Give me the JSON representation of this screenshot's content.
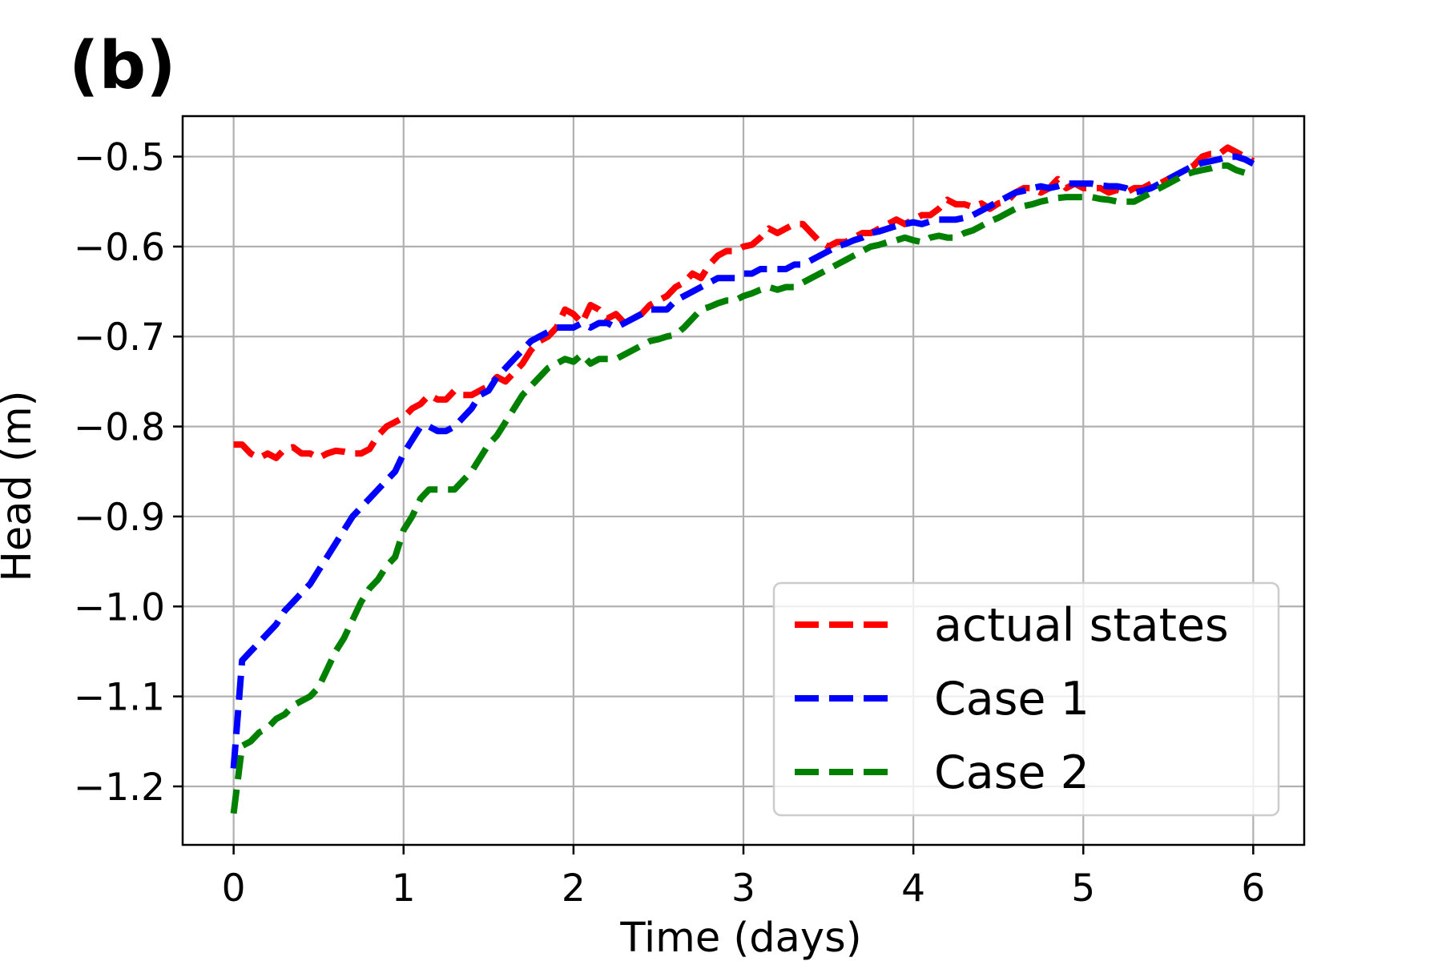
{
  "panel_label": "(b)",
  "chart_data": {
    "type": "line",
    "xlabel": "Time (days)",
    "ylabel": "Head (m)",
    "xlim": [
      -0.3,
      6.3
    ],
    "ylim": [
      -1.265,
      -0.455
    ],
    "xticks": [
      0,
      1,
      2,
      3,
      4,
      5,
      6
    ],
    "xtick_labels": [
      "0",
      "1",
      "2",
      "3",
      "4",
      "5",
      "6"
    ],
    "yticks": [
      -0.5,
      -0.6,
      -0.7,
      -0.8,
      -0.9,
      -1.0,
      -1.1,
      -1.2
    ],
    "ytick_labels": [
      "−0.5",
      "−0.6",
      "−0.7",
      "−0.8",
      "−0.9",
      "−1.0",
      "−1.1",
      "−1.2"
    ],
    "grid": true,
    "legend_position": "lower-right",
    "series": [
      {
        "name": "actual states",
        "color": "#ff0000",
        "x": [
          0,
          0.05,
          0.1,
          0.15,
          0.2,
          0.25,
          0.3,
          0.35,
          0.4,
          0.45,
          0.5,
          0.55,
          0.6,
          0.65,
          0.7,
          0.75,
          0.8,
          0.85,
          0.9,
          0.95,
          1.0,
          1.05,
          1.1,
          1.15,
          1.2,
          1.25,
          1.3,
          1.35,
          1.4,
          1.45,
          1.5,
          1.55,
          1.6,
          1.65,
          1.7,
          1.75,
          1.8,
          1.85,
          1.9,
          1.95,
          2.0,
          2.05,
          2.1,
          2.15,
          2.2,
          2.25,
          2.3,
          2.35,
          2.4,
          2.45,
          2.5,
          2.55,
          2.6,
          2.65,
          2.7,
          2.75,
          2.8,
          2.85,
          2.9,
          2.95,
          3.0,
          3.05,
          3.1,
          3.15,
          3.2,
          3.25,
          3.3,
          3.35,
          3.4,
          3.45,
          3.5,
          3.55,
          3.6,
          3.65,
          3.7,
          3.75,
          3.8,
          3.85,
          3.9,
          3.95,
          4.0,
          4.05,
          4.1,
          4.15,
          4.2,
          4.25,
          4.3,
          4.35,
          4.4,
          4.45,
          4.5,
          4.55,
          4.6,
          4.65,
          4.7,
          4.75,
          4.8,
          4.85,
          4.9,
          4.95,
          5.0,
          5.05,
          5.1,
          5.15,
          5.2,
          5.25,
          5.3,
          5.35,
          5.4,
          5.45,
          5.5,
          5.55,
          5.6,
          5.65,
          5.7,
          5.75,
          5.8,
          5.85,
          5.9,
          5.95,
          6.0
        ],
        "y": [
          -0.82,
          -0.82,
          -0.83,
          -0.835,
          -0.83,
          -0.835,
          -0.825,
          -0.823,
          -0.83,
          -0.83,
          -0.835,
          -0.83,
          -0.827,
          -0.828,
          -0.83,
          -0.83,
          -0.825,
          -0.81,
          -0.8,
          -0.795,
          -0.79,
          -0.78,
          -0.775,
          -0.765,
          -0.77,
          -0.77,
          -0.76,
          -0.765,
          -0.765,
          -0.76,
          -0.755,
          -0.745,
          -0.75,
          -0.74,
          -0.73,
          -0.715,
          -0.705,
          -0.7,
          -0.69,
          -0.67,
          -0.675,
          -0.685,
          -0.665,
          -0.67,
          -0.68,
          -0.675,
          -0.685,
          -0.68,
          -0.675,
          -0.665,
          -0.66,
          -0.655,
          -0.645,
          -0.64,
          -0.63,
          -0.635,
          -0.62,
          -0.61,
          -0.605,
          -0.605,
          -0.6,
          -0.598,
          -0.59,
          -0.58,
          -0.585,
          -0.58,
          -0.575,
          -0.575,
          -0.585,
          -0.595,
          -0.6,
          -0.595,
          -0.595,
          -0.59,
          -0.585,
          -0.585,
          -0.58,
          -0.575,
          -0.57,
          -0.575,
          -0.57,
          -0.565,
          -0.565,
          -0.558,
          -0.548,
          -0.553,
          -0.553,
          -0.556,
          -0.552,
          -0.558,
          -0.552,
          -0.55,
          -0.54,
          -0.535,
          -0.535,
          -0.54,
          -0.535,
          -0.525,
          -0.535,
          -0.53,
          -0.535,
          -0.535,
          -0.535,
          -0.54,
          -0.537,
          -0.54,
          -0.535,
          -0.535,
          -0.53,
          -0.53,
          -0.525,
          -0.52,
          -0.515,
          -0.51,
          -0.5,
          -0.497,
          -0.497,
          -0.49,
          -0.495,
          -0.5,
          -0.505
        ]
      },
      {
        "name": "Case 1",
        "color": "#0000ff",
        "x": [
          0,
          0.05,
          0.1,
          0.15,
          0.2,
          0.25,
          0.3,
          0.35,
          0.4,
          0.45,
          0.5,
          0.55,
          0.6,
          0.65,
          0.7,
          0.75,
          0.8,
          0.85,
          0.9,
          0.95,
          1.0,
          1.05,
          1.1,
          1.15,
          1.2,
          1.25,
          1.3,
          1.35,
          1.4,
          1.45,
          1.5,
          1.55,
          1.6,
          1.65,
          1.7,
          1.75,
          1.8,
          1.85,
          1.9,
          1.95,
          2.0,
          2.05,
          2.1,
          2.15,
          2.2,
          2.25,
          2.3,
          2.35,
          2.4,
          2.45,
          2.5,
          2.55,
          2.6,
          2.65,
          2.7,
          2.75,
          2.8,
          2.85,
          2.9,
          2.95,
          3.0,
          3.05,
          3.1,
          3.15,
          3.2,
          3.25,
          3.3,
          3.35,
          3.4,
          3.45,
          3.5,
          3.55,
          3.6,
          3.65,
          3.7,
          3.75,
          3.8,
          3.85,
          3.9,
          3.95,
          4.0,
          4.05,
          4.1,
          4.15,
          4.2,
          4.25,
          4.3,
          4.35,
          4.4,
          4.45,
          4.5,
          4.55,
          4.6,
          4.65,
          4.7,
          4.75,
          4.8,
          4.85,
          4.9,
          4.95,
          5.0,
          5.05,
          5.1,
          5.15,
          5.2,
          5.25,
          5.3,
          5.35,
          5.4,
          5.45,
          5.5,
          5.55,
          5.6,
          5.65,
          5.7,
          5.75,
          5.8,
          5.85,
          5.9,
          5.95,
          6.0
        ],
        "y": [
          -1.18,
          -1.06,
          -1.05,
          -1.04,
          -1.03,
          -1.02,
          -1.005,
          -0.995,
          -0.985,
          -0.975,
          -0.96,
          -0.945,
          -0.93,
          -0.915,
          -0.9,
          -0.89,
          -0.88,
          -0.87,
          -0.86,
          -0.85,
          -0.83,
          -0.815,
          -0.8,
          -0.8,
          -0.805,
          -0.805,
          -0.8,
          -0.79,
          -0.78,
          -0.765,
          -0.76,
          -0.745,
          -0.735,
          -0.725,
          -0.715,
          -0.705,
          -0.7,
          -0.695,
          -0.69,
          -0.69,
          -0.69,
          -0.685,
          -0.69,
          -0.685,
          -0.685,
          -0.69,
          -0.685,
          -0.68,
          -0.675,
          -0.67,
          -0.67,
          -0.67,
          -0.66,
          -0.655,
          -0.65,
          -0.645,
          -0.64,
          -0.635,
          -0.635,
          -0.635,
          -0.63,
          -0.63,
          -0.625,
          -0.625,
          -0.625,
          -0.625,
          -0.62,
          -0.62,
          -0.615,
          -0.61,
          -0.605,
          -0.6,
          -0.597,
          -0.593,
          -0.59,
          -0.585,
          -0.583,
          -0.58,
          -0.577,
          -0.575,
          -0.573,
          -0.575,
          -0.572,
          -0.57,
          -0.57,
          -0.57,
          -0.568,
          -0.565,
          -0.56,
          -0.555,
          -0.55,
          -0.545,
          -0.54,
          -0.538,
          -0.535,
          -0.533,
          -0.535,
          -0.533,
          -0.53,
          -0.53,
          -0.53,
          -0.53,
          -0.532,
          -0.533,
          -0.533,
          -0.535,
          -0.54,
          -0.538,
          -0.535,
          -0.53,
          -0.525,
          -0.52,
          -0.515,
          -0.51,
          -0.507,
          -0.505,
          -0.503,
          -0.5,
          -0.5,
          -0.503,
          -0.508
        ]
      },
      {
        "name": "Case 2",
        "color": "#008000",
        "x": [
          0,
          0.05,
          0.1,
          0.15,
          0.2,
          0.25,
          0.3,
          0.35,
          0.4,
          0.45,
          0.5,
          0.55,
          0.6,
          0.65,
          0.7,
          0.75,
          0.8,
          0.85,
          0.9,
          0.95,
          1.0,
          1.05,
          1.1,
          1.15,
          1.2,
          1.25,
          1.3,
          1.35,
          1.4,
          1.45,
          1.5,
          1.55,
          1.6,
          1.65,
          1.7,
          1.75,
          1.8,
          1.85,
          1.9,
          1.95,
          2.0,
          2.05,
          2.1,
          2.15,
          2.2,
          2.25,
          2.3,
          2.35,
          2.4,
          2.45,
          2.5,
          2.55,
          2.6,
          2.65,
          2.7,
          2.75,
          2.8,
          2.85,
          2.9,
          2.95,
          3.0,
          3.05,
          3.1,
          3.15,
          3.2,
          3.25,
          3.3,
          3.35,
          3.4,
          3.45,
          3.5,
          3.55,
          3.6,
          3.65,
          3.7,
          3.75,
          3.8,
          3.85,
          3.9,
          3.95,
          4.0,
          4.05,
          4.1,
          4.15,
          4.2,
          4.25,
          4.3,
          4.35,
          4.4,
          4.45,
          4.5,
          4.55,
          4.6,
          4.65,
          4.7,
          4.75,
          4.8,
          4.85,
          4.9,
          4.95,
          5.0,
          5.05,
          5.1,
          5.15,
          5.2,
          5.25,
          5.3,
          5.35,
          5.4,
          5.45,
          5.5,
          5.55,
          5.6,
          5.65,
          5.7,
          5.75,
          5.8,
          5.85,
          5.9,
          5.95,
          6.0
        ],
        "y": [
          -1.23,
          -1.155,
          -1.15,
          -1.14,
          -1.135,
          -1.125,
          -1.12,
          -1.11,
          -1.105,
          -1.1,
          -1.09,
          -1.07,
          -1.05,
          -1.035,
          -1.015,
          -0.995,
          -0.98,
          -0.97,
          -0.955,
          -0.945,
          -0.915,
          -0.9,
          -0.88,
          -0.87,
          -0.87,
          -0.87,
          -0.87,
          -0.86,
          -0.85,
          -0.835,
          -0.82,
          -0.81,
          -0.795,
          -0.78,
          -0.765,
          -0.755,
          -0.745,
          -0.735,
          -0.73,
          -0.725,
          -0.728,
          -0.72,
          -0.73,
          -0.725,
          -0.725,
          -0.725,
          -0.72,
          -0.715,
          -0.71,
          -0.705,
          -0.703,
          -0.7,
          -0.698,
          -0.69,
          -0.68,
          -0.67,
          -0.667,
          -0.663,
          -0.66,
          -0.66,
          -0.655,
          -0.652,
          -0.648,
          -0.645,
          -0.648,
          -0.645,
          -0.645,
          -0.64,
          -0.635,
          -0.63,
          -0.625,
          -0.62,
          -0.615,
          -0.61,
          -0.605,
          -0.6,
          -0.598,
          -0.595,
          -0.593,
          -0.59,
          -0.593,
          -0.595,
          -0.59,
          -0.588,
          -0.59,
          -0.59,
          -0.585,
          -0.582,
          -0.577,
          -0.572,
          -0.568,
          -0.563,
          -0.558,
          -0.555,
          -0.553,
          -0.55,
          -0.548,
          -0.546,
          -0.545,
          -0.545,
          -0.545,
          -0.545,
          -0.547,
          -0.548,
          -0.55,
          -0.55,
          -0.55,
          -0.545,
          -0.54,
          -0.535,
          -0.53,
          -0.525,
          -0.52,
          -0.517,
          -0.515,
          -0.513,
          -0.51,
          -0.51,
          -0.515,
          -0.518,
          -0.522
        ]
      }
    ]
  }
}
